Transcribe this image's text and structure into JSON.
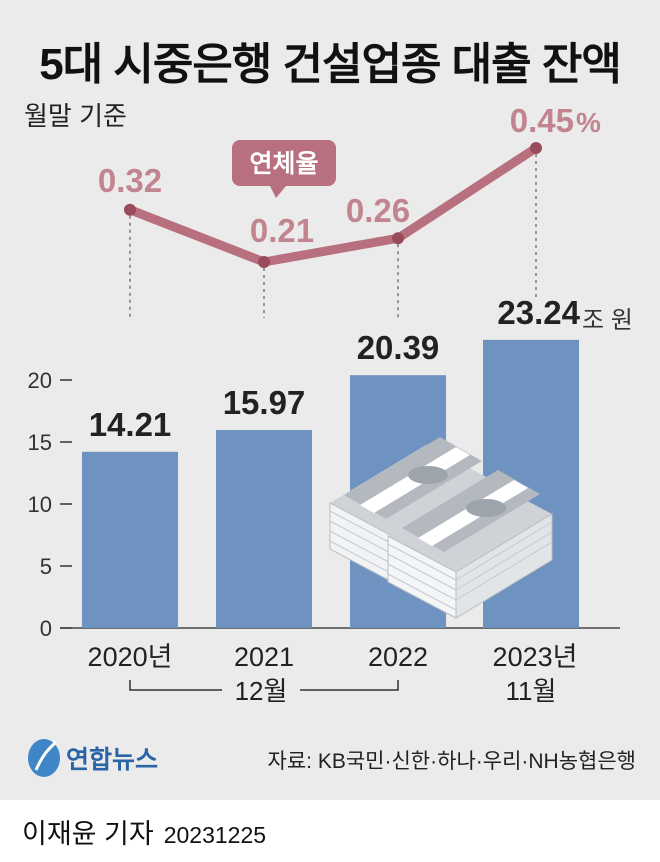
{
  "title": "5대 시중은행 건설업종 대출 잔액",
  "basis": "월말 기준",
  "chart_data": {
    "type": "bar",
    "categories": [
      "2020년\n12월",
      "2021\n12월",
      "2022\n12월",
      "2023년\n11월"
    ],
    "x_labels": [
      "2020년",
      "2021",
      "2022",
      "2023년"
    ],
    "x_sublabels": [
      "12월",
      "11월"
    ],
    "series": [
      {
        "values": [
          14.21,
          15.97,
          20.39,
          23.24
        ],
        "color": "#6f93c0"
      },
      {
        "name": "연체율",
        "values": [
          0.32,
          0.21,
          0.26,
          0.45
        ],
        "color": "#b8707e"
      }
    ],
    "bar_value_labels": [
      "14.21",
      "15.97",
      "20.39",
      "23.24"
    ],
    "bar_unit": "조 원",
    "rate_value_labels": [
      "0.32",
      "0.21",
      "0.26",
      "0.45"
    ],
    "rate_unit": "%",
    "yticks": [
      "0",
      "5",
      "10",
      "15",
      "20"
    ],
    "ylim": [
      0,
      25
    ]
  },
  "source": "자료: KB국민·신한·하나·우리·NH농협은행",
  "logo": "연합뉴스",
  "reporter": "이재윤 기자",
  "date": "20231225"
}
